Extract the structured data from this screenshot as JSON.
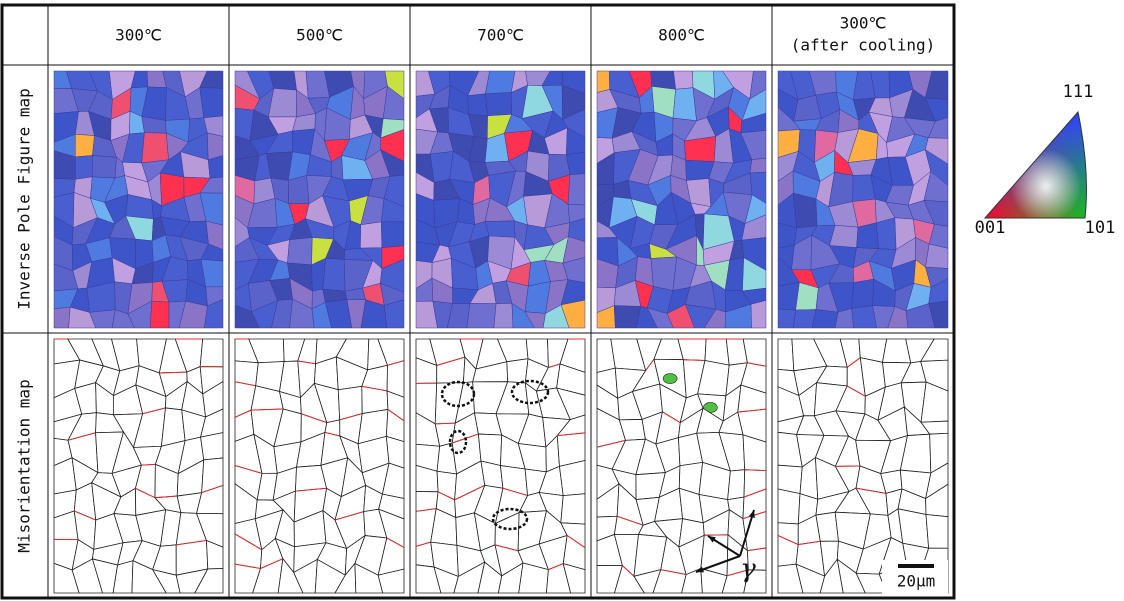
{
  "header": {
    "columns": [
      {
        "label": "300℃"
      },
      {
        "label": "500℃"
      },
      {
        "label": "700℃"
      },
      {
        "label": "800℃"
      },
      {
        "label": "300℃",
        "sublabel": "(after cooling)"
      }
    ]
  },
  "rows": [
    {
      "label": "Inverse Pole Figure map"
    },
    {
      "label": "Misorientation map"
    }
  ],
  "legend": {
    "top": "111",
    "left": "001",
    "right": "101"
  },
  "annotations": {
    "scale_bar": "20μm",
    "phase": "γ"
  }
}
